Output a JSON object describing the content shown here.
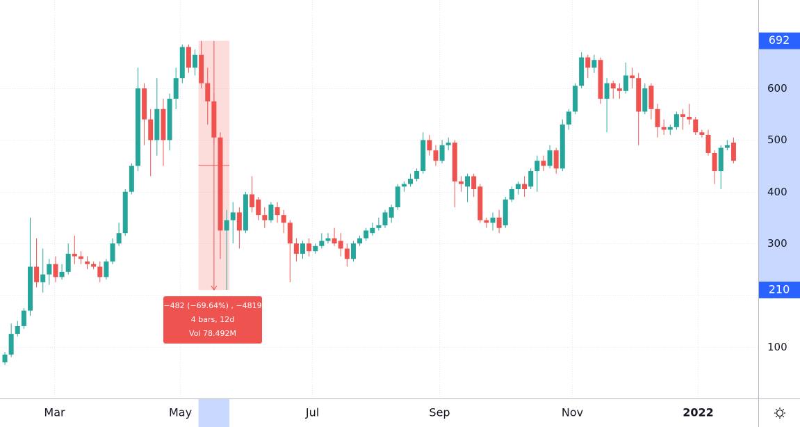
{
  "chart_data": {
    "type": "candlestick",
    "up_color": "#26a69a",
    "down_color": "#ef5350",
    "grid": true,
    "categories": [
      null,
      null,
      null,
      null,
      null,
      null,
      null,
      null,
      null,
      null,
      null,
      null,
      null,
      null,
      null,
      null,
      null,
      null,
      null,
      null,
      null,
      null,
      null,
      null,
      null,
      null,
      null,
      null,
      null,
      null,
      null,
      null,
      null,
      null,
      null,
      null,
      null,
      null,
      null,
      null,
      null,
      null,
      null,
      null,
      null,
      null,
      null,
      null,
      null,
      null,
      null,
      null,
      null,
      null,
      null,
      null,
      null,
      null,
      null,
      null,
      null,
      null,
      null,
      null,
      null,
      null,
      null,
      null,
      null,
      null,
      null,
      null,
      null,
      null,
      null,
      null,
      null,
      null,
      null,
      null,
      null,
      null,
      null,
      null,
      null,
      null,
      null,
      null,
      null,
      null,
      null,
      null,
      null,
      null,
      null,
      null,
      null,
      null,
      null,
      null,
      null,
      null,
      null,
      null,
      null,
      null,
      null,
      null,
      null,
      null,
      null,
      null,
      null,
      null,
      null,
      null
    ],
    "open": [
      70,
      85,
      125,
      140,
      170,
      255,
      225,
      240,
      260,
      235,
      245,
      280,
      275,
      265,
      260,
      255,
      235,
      265,
      300,
      320,
      400,
      450,
      600,
      540,
      500,
      560,
      500,
      580,
      620,
      680,
      640,
      665,
      610,
      575,
      505,
      325,
      345,
      360,
      325,
      395,
      385,
      355,
      345,
      370,
      355,
      340,
      300,
      280,
      300,
      285,
      295,
      305,
      310,
      305,
      290,
      270,
      300,
      310,
      320,
      330,
      335,
      350,
      370,
      410,
      415,
      425,
      440,
      500,
      480,
      460,
      490,
      495,
      420,
      410,
      430,
      410,
      345,
      340,
      350,
      335,
      385,
      405,
      415,
      410,
      440,
      460,
      450,
      480,
      445,
      530,
      555,
      605,
      660,
      640,
      655,
      580,
      610,
      600,
      595,
      625,
      620,
      555,
      605,
      560,
      525,
      520,
      525,
      550,
      545,
      540,
      515,
      510,
      475,
      440,
      485,
      495
    ],
    "high": [
      90,
      145,
      150,
      175,
      350,
      310,
      290,
      270,
      275,
      260,
      300,
      315,
      285,
      275,
      265,
      265,
      270,
      310,
      340,
      405,
      455,
      640,
      610,
      560,
      620,
      580,
      590,
      640,
      685,
      685,
      675,
      692,
      640,
      590,
      515,
      365,
      380,
      370,
      400,
      430,
      390,
      370,
      380,
      380,
      365,
      345,
      310,
      305,
      310,
      300,
      320,
      320,
      330,
      320,
      300,
      305,
      315,
      330,
      340,
      350,
      365,
      375,
      415,
      420,
      435,
      445,
      515,
      510,
      490,
      500,
      505,
      500,
      430,
      435,
      435,
      415,
      350,
      360,
      365,
      390,
      410,
      420,
      430,
      445,
      470,
      470,
      490,
      485,
      540,
      560,
      610,
      670,
      665,
      665,
      660,
      620,
      615,
      610,
      650,
      640,
      630,
      610,
      610,
      570,
      540,
      530,
      555,
      560,
      570,
      545,
      520,
      520,
      480,
      490,
      500,
      505
    ],
    "low": [
      65,
      80,
      120,
      135,
      160,
      215,
      205,
      220,
      225,
      230,
      240,
      260,
      260,
      250,
      250,
      225,
      230,
      260,
      295,
      315,
      395,
      440,
      490,
      430,
      470,
      450,
      480,
      560,
      610,
      630,
      625,
      600,
      530,
      490,
      270,
      210,
      300,
      290,
      320,
      360,
      345,
      330,
      340,
      340,
      320,
      225,
      265,
      270,
      275,
      280,
      290,
      300,
      295,
      275,
      255,
      265,
      295,
      305,
      315,
      325,
      330,
      340,
      365,
      400,
      410,
      420,
      435,
      470,
      450,
      455,
      480,
      370,
      400,
      380,
      390,
      340,
      330,
      325,
      320,
      330,
      380,
      395,
      390,
      405,
      400,
      440,
      445,
      435,
      440,
      520,
      550,
      600,
      620,
      630,
      570,
      515,
      580,
      580,
      590,
      600,
      490,
      550,
      540,
      505,
      510,
      510,
      520,
      520,
      530,
      510,
      505,
      470,
      415,
      405,
      480,
      455
    ],
    "close": [
      85,
      125,
      140,
      170,
      255,
      225,
      240,
      260,
      235,
      245,
      280,
      275,
      270,
      260,
      255,
      235,
      265,
      300,
      320,
      400,
      450,
      600,
      540,
      500,
      560,
      500,
      580,
      620,
      680,
      640,
      665,
      610,
      575,
      505,
      325,
      345,
      360,
      325,
      395,
      370,
      355,
      345,
      375,
      355,
      340,
      300,
      280,
      300,
      285,
      295,
      305,
      310,
      300,
      290,
      270,
      300,
      310,
      325,
      330,
      335,
      360,
      370,
      410,
      415,
      425,
      440,
      500,
      480,
      460,
      490,
      495,
      420,
      415,
      430,
      405,
      345,
      340,
      350,
      330,
      385,
      405,
      415,
      405,
      440,
      460,
      450,
      480,
      445,
      530,
      555,
      605,
      660,
      640,
      655,
      580,
      610,
      600,
      595,
      625,
      620,
      555,
      600,
      560,
      525,
      520,
      525,
      550,
      545,
      540,
      515,
      510,
      475,
      440,
      485,
      490,
      460
    ],
    "ylim": [
      0,
      771
    ],
    "yticks": [
      100,
      200,
      300,
      400,
      500,
      600
    ],
    "xlim": [
      -0.77,
      118.9
    ],
    "xticks": [
      {
        "value": 7.8,
        "label": "Mar"
      },
      {
        "value": 27.6,
        "label": "May"
      },
      {
        "value": 48.5,
        "label": "Jul"
      },
      {
        "value": 68.5,
        "label": "Sep"
      },
      {
        "value": 89.5,
        "label": "Nov"
      },
      {
        "value": 109.4,
        "label": "2022"
      }
    ],
    "measure": {
      "high": 692,
      "low": 210,
      "change_label": "−482 (−69.64%) , −4819",
      "bars_label": "4 bars, 12d",
      "volume_label": "Vol 78.492M"
    }
  }
}
